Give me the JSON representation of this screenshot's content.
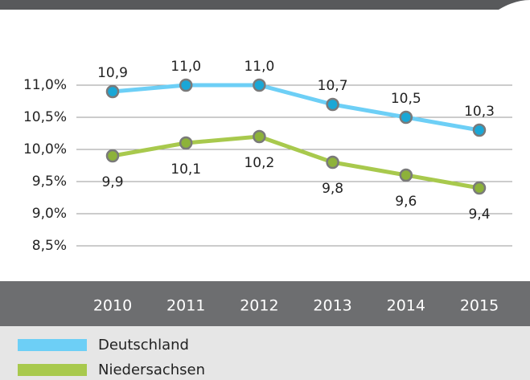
{
  "chart_data": {
    "type": "line",
    "categories": [
      "2010",
      "2011",
      "2012",
      "2013",
      "2014",
      "2015"
    ],
    "series": [
      {
        "name": "Deutschland",
        "color": "#6dcff6",
        "marker_color": "#1aa7d6",
        "values": [
          10.9,
          11.0,
          11.0,
          10.7,
          10.5,
          10.3
        ],
        "value_labels": [
          "10,9",
          "11,0",
          "11,0",
          "10,7",
          "10,5",
          "10,3"
        ]
      },
      {
        "name": "Niedersachsen",
        "color": "#a8c94d",
        "marker_color": "#8db23a",
        "values": [
          9.9,
          10.1,
          10.2,
          9.8,
          9.6,
          9.4
        ],
        "value_labels": [
          "9,9",
          "10,1",
          "10,2",
          "9,8",
          "9,6",
          "9,4"
        ]
      }
    ],
    "ylim": [
      8.5,
      11.0
    ],
    "yticks": [
      {
        "value": 8.5,
        "label": "8,5%"
      },
      {
        "value": 9.0,
        "label": "9,0%"
      },
      {
        "value": 9.5,
        "label": "9,5%"
      },
      {
        "value": 10.0,
        "label": "10,0%"
      },
      {
        "value": 10.5,
        "label": "10,5%"
      },
      {
        "value": 11.0,
        "label": "11,0%"
      }
    ],
    "grid": true
  }
}
